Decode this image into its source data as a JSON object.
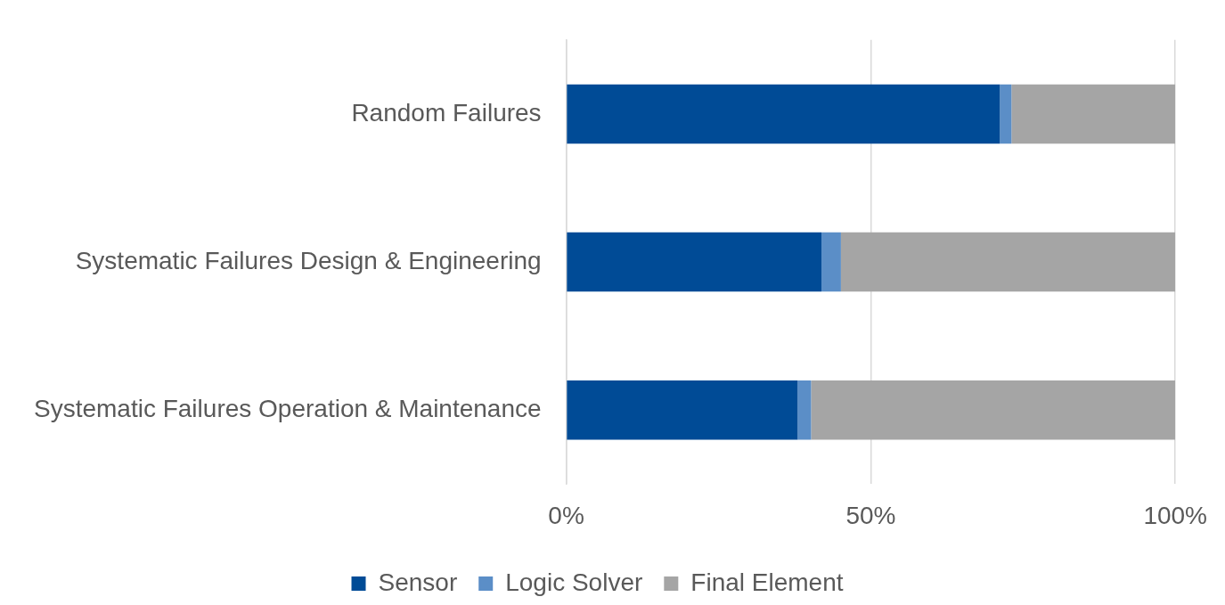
{
  "chart_data": {
    "type": "bar",
    "orientation": "horizontal",
    "stacked": true,
    "categories": [
      "Random Failures",
      "Systematic Failures Design & Engineering",
      "Systematic Failures Operation & Maintenance"
    ],
    "series": [
      {
        "name": "Sensor",
        "color": "#004b96",
        "values": [
          71.2,
          41.9,
          38.0
        ]
      },
      {
        "name": "Logic Solver",
        "color": "#5b8ec7",
        "values": [
          1.9,
          3.2,
          2.2
        ]
      },
      {
        "name": "Final Element",
        "color": "#a5a5a5",
        "values": [
          26.9,
          54.9,
          59.8
        ]
      }
    ],
    "xlim": [
      0,
      100
    ],
    "xticks": [
      {
        "value": 0,
        "label": "0%"
      },
      {
        "value": 50,
        "label": "50%"
      },
      {
        "value": 100,
        "label": "100%"
      }
    ],
    "grid": "x",
    "legend": "bottom"
  }
}
